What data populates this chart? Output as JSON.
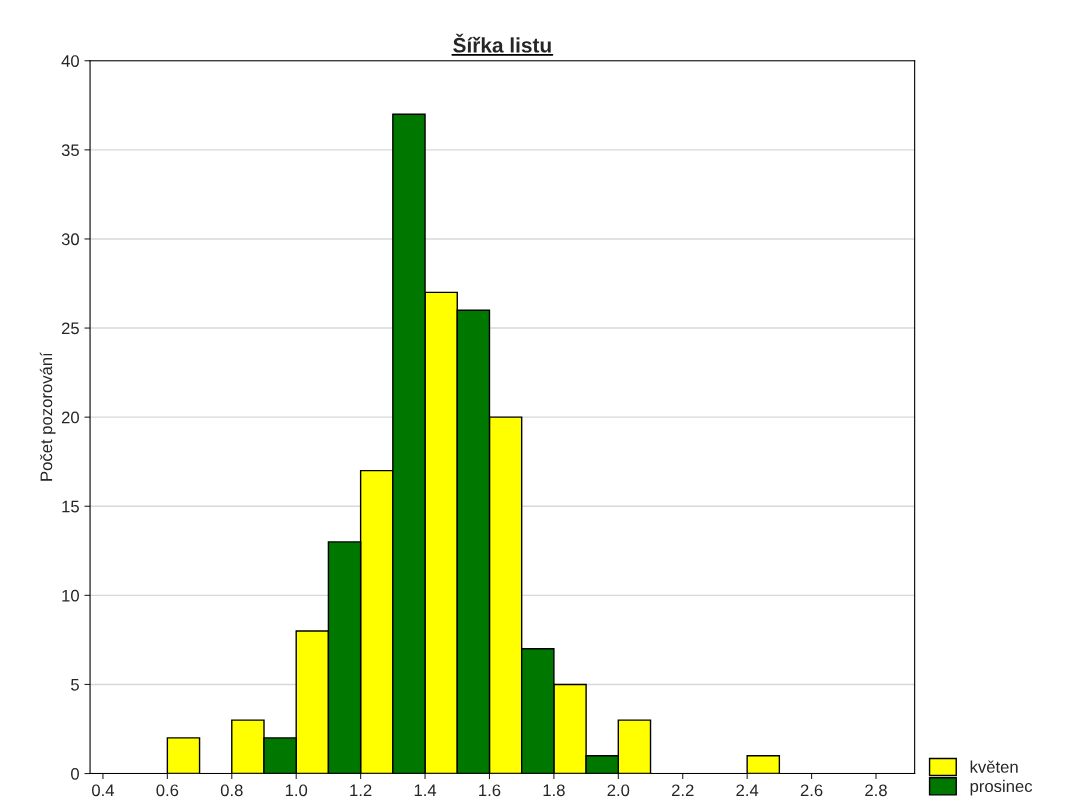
{
  "chart_data": {
    "type": "histogram",
    "title": "Šířka listu",
    "ylabel": "Počet pozorování",
    "bins": [
      0.4,
      0.6,
      0.8,
      1.0,
      1.2,
      1.4,
      1.6,
      1.8,
      2.0,
      2.2,
      2.4,
      2.6,
      2.8
    ],
    "series": [
      {
        "name": "květen",
        "color": "#ffff00",
        "values": [
          0,
          2,
          3,
          8,
          17,
          27,
          20,
          5,
          3,
          0,
          1,
          0
        ]
      },
      {
        "name": "prosinec",
        "color": "#007800",
        "values": [
          0,
          0,
          2,
          13,
          37,
          26,
          7,
          1,
          0,
          0,
          0,
          0
        ]
      }
    ],
    "xlim": [
      0.36,
      2.92
    ],
    "xticks": [
      {
        "value": 0.4,
        "label": "0.4"
      },
      {
        "value": 0.6,
        "label": "0.6"
      },
      {
        "value": 0.8,
        "label": "0.8"
      },
      {
        "value": 1.0,
        "label": "1.0"
      },
      {
        "value": 1.2,
        "label": "1.2"
      },
      {
        "value": 1.4,
        "label": "1.4"
      },
      {
        "value": 1.6,
        "label": "1.6"
      },
      {
        "value": 1.8,
        "label": "1.8"
      },
      {
        "value": 2.0,
        "label": "2.0"
      },
      {
        "value": 2.2,
        "label": "2.2"
      },
      {
        "value": 2.4,
        "label": "2.4"
      },
      {
        "value": 2.6,
        "label": "2.6"
      },
      {
        "value": 2.8,
        "label": "2.8"
      }
    ],
    "ylim": [
      0,
      40
    ],
    "yticks": [
      0,
      5,
      10,
      15,
      20,
      25,
      30,
      35,
      40
    ],
    "grid": "y",
    "legend": "bottom right"
  }
}
